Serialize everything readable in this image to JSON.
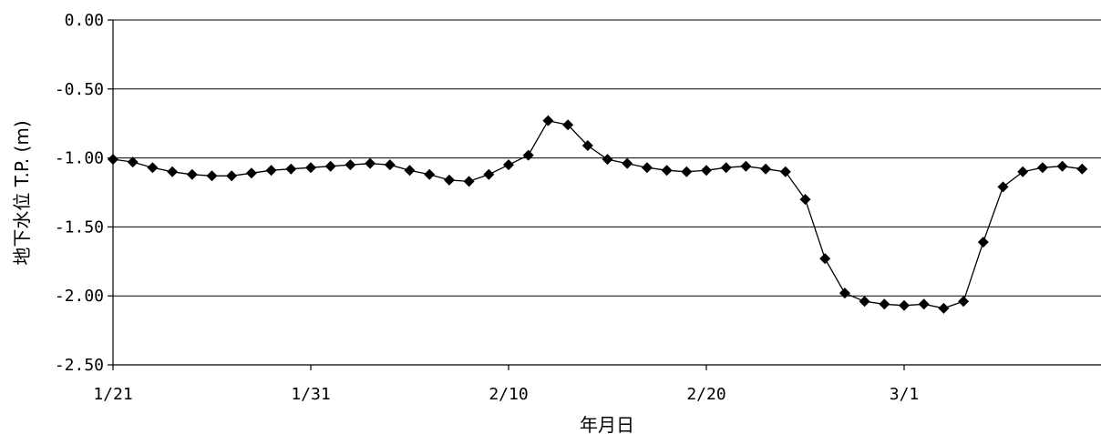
{
  "chart_data": {
    "type": "line",
    "xlabel": "年月日",
    "ylabel": "地下水位 T.P. (m)",
    "ylim": [
      -2.5,
      0.0
    ],
    "yticks": [
      0.0,
      -0.5,
      -1.0,
      -1.5,
      -2.0,
      -2.5
    ],
    "ytick_labels": [
      "0.00",
      "-0.50",
      "-1.00",
      "-1.50",
      "-2.00",
      "-2.50"
    ],
    "xlim": [
      0,
      49
    ],
    "xticks": [
      0,
      10,
      20,
      30,
      40
    ],
    "xtick_labels": [
      "1/21",
      "1/31",
      "2/10",
      "2/20",
      "3/1"
    ],
    "grid": "horizontal",
    "marker": "diamond",
    "series_color": "#000000",
    "x": [
      0,
      1,
      2,
      3,
      4,
      5,
      6,
      7,
      8,
      9,
      10,
      11,
      12,
      13,
      14,
      15,
      16,
      17,
      18,
      19,
      20,
      21,
      22,
      23,
      24,
      25,
      26,
      27,
      28,
      29,
      30,
      31,
      32,
      33,
      34,
      35,
      36,
      37,
      38,
      39,
      40,
      41,
      42,
      43,
      44,
      45,
      46,
      47,
      48,
      49
    ],
    "values": [
      -1.01,
      -1.03,
      -1.07,
      -1.1,
      -1.12,
      -1.13,
      -1.13,
      -1.11,
      -1.09,
      -1.08,
      -1.07,
      -1.06,
      -1.05,
      -1.04,
      -1.05,
      -1.09,
      -1.12,
      -1.16,
      -1.17,
      -1.12,
      -1.05,
      -0.98,
      -0.73,
      -0.76,
      -0.91,
      -1.01,
      -1.04,
      -1.07,
      -1.09,
      -1.1,
      -1.09,
      -1.07,
      -1.06,
      -1.08,
      -1.1,
      -1.3,
      -1.73,
      -1.98,
      -2.04,
      -2.06,
      -2.07,
      -2.06,
      -2.09,
      -2.04,
      -1.61,
      -1.21,
      -1.1,
      -1.07,
      -1.06,
      -1.08
    ]
  }
}
